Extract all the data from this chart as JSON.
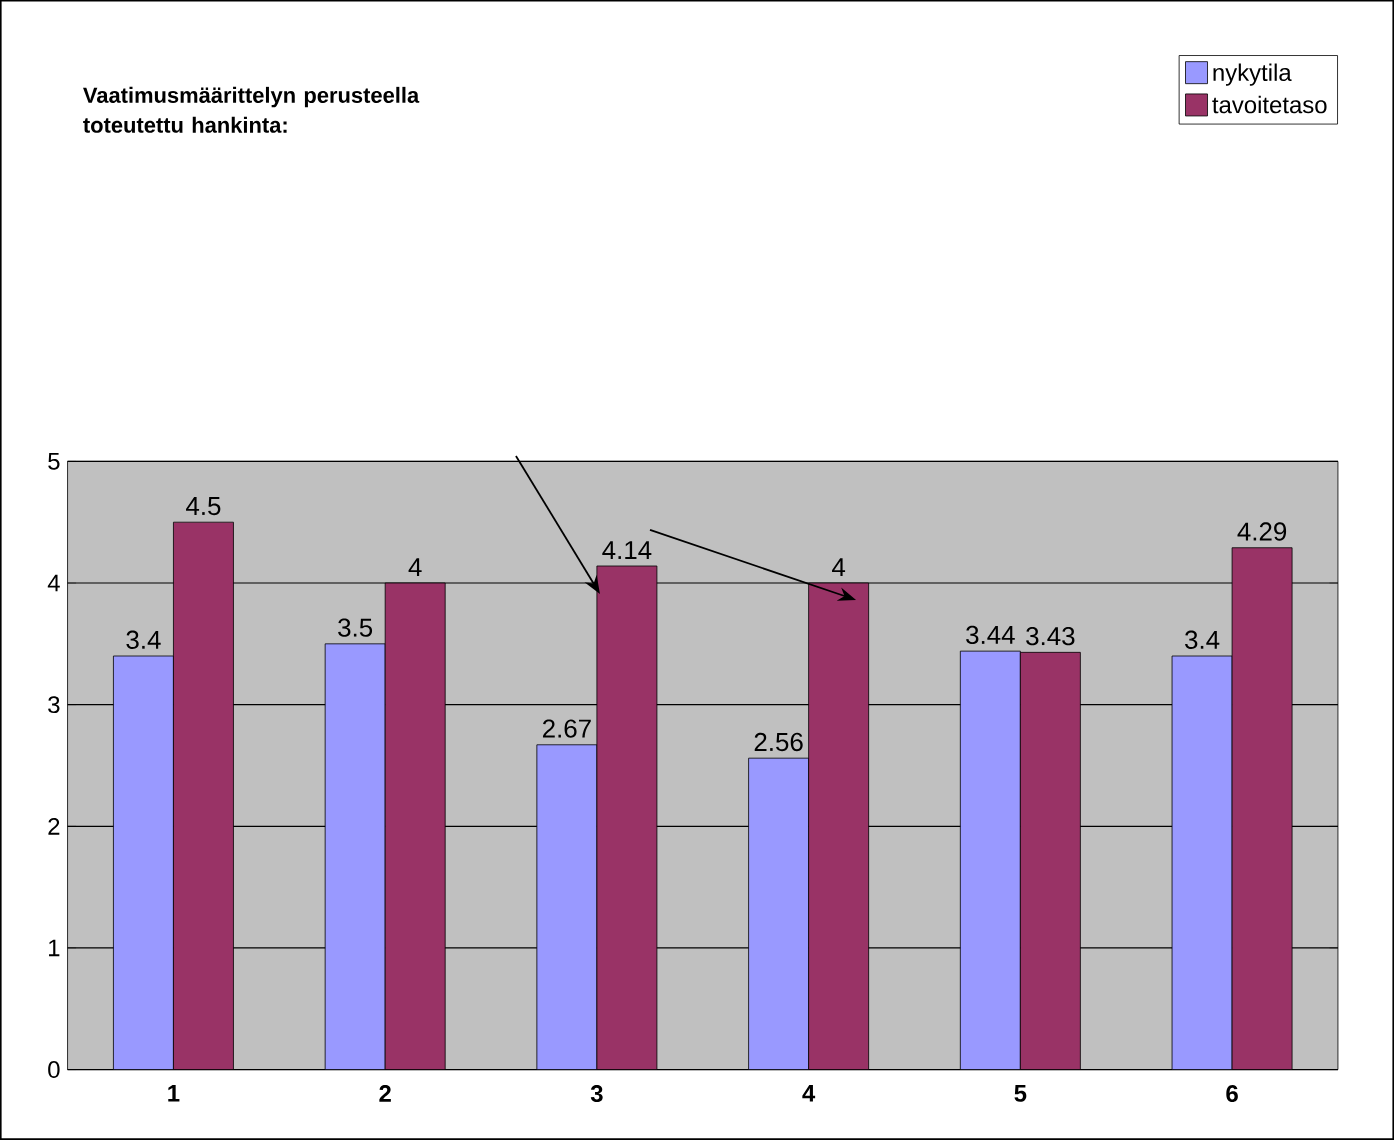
{
  "chart_data": {
    "type": "bar",
    "title": "Vaatimusmäärittelyn perusteella toteutettu hankinta:",
    "categories": [
      "1",
      "2",
      "3",
      "4",
      "5",
      "6"
    ],
    "series": [
      {
        "name": "nykytila",
        "color": "#9999ff",
        "values": [
          3.4,
          3.5,
          2.67,
          2.56,
          3.44,
          3.4
        ]
      },
      {
        "name": "tavoitetaso",
        "color": "#993366",
        "values": [
          4.5,
          4,
          4.14,
          4,
          3.43,
          4.29
        ]
      }
    ],
    "ylim": [
      0,
      5
    ],
    "yticks": [
      0,
      1,
      2,
      3,
      4,
      5
    ],
    "grid": "y",
    "legend": "top right",
    "data_labels": true
  }
}
